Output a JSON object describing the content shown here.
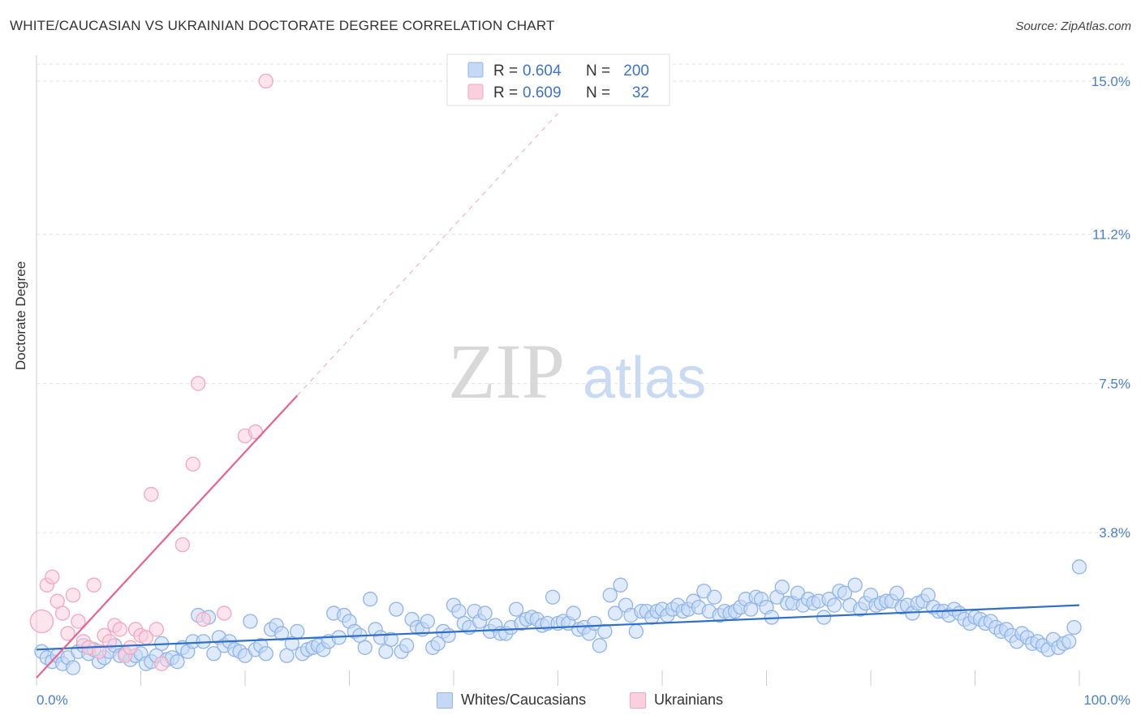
{
  "header": {
    "title": "WHITE/CAUCASIAN VS UKRAINIAN DOCTORATE DEGREE CORRELATION CHART",
    "source": "Source: ZipAtlas.com"
  },
  "watermark": {
    "zip": "ZIP",
    "atlas": "atlas"
  },
  "legend_top": {
    "rows": [
      {
        "r_label": "R =",
        "r_value": "0.604",
        "n_label": "N =",
        "n_value": "200",
        "color": "#8fb4ea"
      },
      {
        "r_label": "R =",
        "r_value": "0.609",
        "n_label": "N =",
        "n_value": "32",
        "color": "#f4a6bf"
      }
    ]
  },
  "legend_bottom": {
    "items": [
      {
        "label": "Whites/Caucasians",
        "fill": "#c5d9f5",
        "stroke": "#8fb4ea"
      },
      {
        "label": "Ukrainians",
        "fill": "#f9d0dd",
        "stroke": "#f4a6bf"
      }
    ]
  },
  "chart_data": {
    "type": "scatter",
    "title": "WHITE/CAUCASIAN VS UKRAINIAN DOCTORATE DEGREE CORRELATION CHART",
    "xlabel": "",
    "ylabel": "Doctorate Degree",
    "xlim": [
      0,
      100
    ],
    "ylim": [
      0,
      15.4
    ],
    "x_tick_labels": [
      "0.0%",
      "100.0%"
    ],
    "y_ticks": [
      3.8,
      7.5,
      11.2,
      15.0
    ],
    "y_tick_labels": [
      "3.8%",
      "7.5%",
      "11.2%",
      "15.0%"
    ],
    "grid": true,
    "legend_position": "top-center",
    "series": [
      {
        "name": "Whites/Caucasians",
        "color": "#8fb4ea",
        "line_color": "#2e6fcc",
        "trend": {
          "x": [
            0,
            100
          ],
          "y": [
            0.9,
            2.0
          ]
        },
        "points": [
          [
            0.5,
            0.85
          ],
          [
            1,
            0.7
          ],
          [
            1.5,
            0.6
          ],
          [
            2,
            0.75
          ],
          [
            2.5,
            0.55
          ],
          [
            3,
            0.7
          ],
          [
            3.5,
            0.45
          ],
          [
            4,
            0.85
          ],
          [
            4.5,
            1.0
          ],
          [
            5,
            0.8
          ],
          [
            5.5,
            0.9
          ],
          [
            6,
            0.6
          ],
          [
            6.5,
            0.7
          ],
          [
            7,
            0.85
          ],
          [
            7.5,
            1.0
          ],
          [
            8,
            0.75
          ],
          [
            8.5,
            0.8
          ],
          [
            9,
            0.65
          ],
          [
            9.5,
            0.75
          ],
          [
            10,
            0.8
          ],
          [
            10.5,
            0.55
          ],
          [
            11,
            0.6
          ],
          [
            11.5,
            0.75
          ],
          [
            12,
            1.05
          ],
          [
            12.5,
            0.65
          ],
          [
            13,
            0.7
          ],
          [
            13.5,
            0.6
          ],
          [
            14,
            0.95
          ],
          [
            14.5,
            0.85
          ],
          [
            15,
            1.1
          ],
          [
            15.5,
            1.75
          ],
          [
            16,
            1.1
          ],
          [
            16.5,
            1.7
          ],
          [
            17,
            0.8
          ],
          [
            17.5,
            1.2
          ],
          [
            18,
            1.0
          ],
          [
            18.5,
            1.1
          ],
          [
            19,
            0.9
          ],
          [
            19.5,
            0.85
          ],
          [
            20,
            0.75
          ],
          [
            20.5,
            1.6
          ],
          [
            21,
            0.9
          ],
          [
            21.5,
            1.0
          ],
          [
            22,
            0.8
          ],
          [
            22.5,
            1.4
          ],
          [
            23,
            1.5
          ],
          [
            23.5,
            1.3
          ],
          [
            24,
            0.75
          ],
          [
            24.5,
            1.05
          ],
          [
            25,
            1.35
          ],
          [
            25.5,
            0.8
          ],
          [
            26,
            0.9
          ],
          [
            26.5,
            0.95
          ],
          [
            27,
            1.0
          ],
          [
            27.5,
            0.9
          ],
          [
            28,
            1.1
          ],
          [
            28.5,
            1.8
          ],
          [
            29,
            1.2
          ],
          [
            29.5,
            1.75
          ],
          [
            30,
            1.6
          ],
          [
            30.5,
            1.35
          ],
          [
            31,
            1.25
          ],
          [
            31.5,
            0.95
          ],
          [
            32,
            2.15
          ],
          [
            32.5,
            1.4
          ],
          [
            33,
            1.2
          ],
          [
            33.5,
            0.85
          ],
          [
            34,
            1.15
          ],
          [
            34.5,
            1.9
          ],
          [
            35,
            0.85
          ],
          [
            35.5,
            1.0
          ],
          [
            36,
            1.65
          ],
          [
            36.5,
            1.45
          ],
          [
            37,
            1.4
          ],
          [
            37.5,
            1.6
          ],
          [
            38,
            0.95
          ],
          [
            38.5,
            1.05
          ],
          [
            39,
            1.35
          ],
          [
            39.5,
            1.25
          ],
          [
            40,
            2.0
          ],
          [
            40.5,
            1.85
          ],
          [
            41,
            1.55
          ],
          [
            41.5,
            1.45
          ],
          [
            42,
            1.85
          ],
          [
            42.5,
            1.6
          ],
          [
            43,
            1.8
          ],
          [
            43.5,
            1.35
          ],
          [
            44,
            1.5
          ],
          [
            44.5,
            1.3
          ],
          [
            45,
            1.3
          ],
          [
            45.5,
            1.45
          ],
          [
            46,
            1.9
          ],
          [
            46.5,
            1.55
          ],
          [
            47,
            1.65
          ],
          [
            47.5,
            1.7
          ],
          [
            48,
            1.65
          ],
          [
            48.5,
            1.5
          ],
          [
            49,
            1.55
          ],
          [
            49.5,
            2.2
          ],
          [
            50,
            1.55
          ],
          [
            50.5,
            1.6
          ],
          [
            51,
            1.55
          ],
          [
            51.5,
            1.8
          ],
          [
            52,
            1.4
          ],
          [
            52.5,
            1.45
          ],
          [
            53,
            1.3
          ],
          [
            53.5,
            1.55
          ],
          [
            54,
            1.0
          ],
          [
            54.5,
            1.35
          ],
          [
            55,
            2.25
          ],
          [
            55.5,
            1.8
          ],
          [
            56,
            2.5
          ],
          [
            56.5,
            2.0
          ],
          [
            57,
            1.75
          ],
          [
            57.5,
            1.35
          ],
          [
            58,
            1.85
          ],
          [
            58.5,
            1.85
          ],
          [
            59,
            1.7
          ],
          [
            59.5,
            1.85
          ],
          [
            60,
            1.9
          ],
          [
            60.5,
            1.75
          ],
          [
            61,
            1.9
          ],
          [
            61.5,
            2.0
          ],
          [
            62,
            1.85
          ],
          [
            62.5,
            1.9
          ],
          [
            63,
            2.1
          ],
          [
            63.5,
            1.95
          ],
          [
            64,
            2.35
          ],
          [
            64.5,
            1.85
          ],
          [
            65,
            2.2
          ],
          [
            65.5,
            1.75
          ],
          [
            66,
            1.85
          ],
          [
            66.5,
            1.8
          ],
          [
            67,
            1.85
          ],
          [
            67.5,
            1.95
          ],
          [
            68,
            2.15
          ],
          [
            68.5,
            1.9
          ],
          [
            69,
            2.2
          ],
          [
            69.5,
            2.15
          ],
          [
            70,
            1.95
          ],
          [
            70.5,
            1.7
          ],
          [
            71,
            2.2
          ],
          [
            71.5,
            2.45
          ],
          [
            72,
            2.05
          ],
          [
            72.5,
            2.05
          ],
          [
            73,
            2.3
          ],
          [
            73.5,
            2.0
          ],
          [
            74,
            2.15
          ],
          [
            74.5,
            2.05
          ],
          [
            75,
            2.1
          ],
          [
            75.5,
            1.7
          ],
          [
            76,
            2.15
          ],
          [
            76.5,
            2.0
          ],
          [
            77,
            2.35
          ],
          [
            77.5,
            2.3
          ],
          [
            78,
            2.0
          ],
          [
            78.5,
            2.5
          ],
          [
            79,
            1.9
          ],
          [
            79.5,
            2.05
          ],
          [
            80,
            2.25
          ],
          [
            80.5,
            2.0
          ],
          [
            81,
            2.05
          ],
          [
            81.5,
            2.1
          ],
          [
            82,
            2.1
          ],
          [
            82.5,
            2.3
          ],
          [
            83,
            1.95
          ],
          [
            83.5,
            2.0
          ],
          [
            84,
            1.8
          ],
          [
            84.5,
            2.05
          ],
          [
            85,
            2.1
          ],
          [
            85.5,
            2.25
          ],
          [
            86,
            1.95
          ],
          [
            86.5,
            1.85
          ],
          [
            87,
            1.85
          ],
          [
            87.5,
            1.75
          ],
          [
            88,
            1.9
          ],
          [
            88.5,
            1.8
          ],
          [
            89,
            1.65
          ],
          [
            89.5,
            1.55
          ],
          [
            90,
            1.7
          ],
          [
            90.5,
            1.65
          ],
          [
            91,
            1.55
          ],
          [
            91.5,
            1.6
          ],
          [
            92,
            1.45
          ],
          [
            92.5,
            1.35
          ],
          [
            93,
            1.4
          ],
          [
            93.5,
            1.25
          ],
          [
            94,
            1.1
          ],
          [
            94.5,
            1.3
          ],
          [
            95,
            1.2
          ],
          [
            95.5,
            1.05
          ],
          [
            96,
            1.1
          ],
          [
            96.5,
            1.0
          ],
          [
            97,
            0.9
          ],
          [
            97.5,
            1.15
          ],
          [
            98,
            0.95
          ],
          [
            98.5,
            1.05
          ],
          [
            99,
            1.1
          ],
          [
            99.5,
            1.45
          ],
          [
            100,
            2.95
          ]
        ]
      },
      {
        "name": "Ukrainians",
        "color": "#f4a6bf",
        "line_color": "#e8628f",
        "trend": {
          "x": [
            0,
            25
          ],
          "y": [
            0.2,
            7.2
          ]
        },
        "trend_extension": {
          "x": [
            25,
            50
          ],
          "y": [
            7.2,
            14.2
          ]
        },
        "points": [
          [
            0.5,
            1.6
          ],
          [
            1,
            2.5
          ],
          [
            1.5,
            2.7
          ],
          [
            2,
            2.1
          ],
          [
            2.5,
            1.8
          ],
          [
            3,
            1.3
          ],
          [
            3.5,
            2.25
          ],
          [
            4,
            1.6
          ],
          [
            4.5,
            1.1
          ],
          [
            5,
            0.95
          ],
          [
            5.5,
            2.5
          ],
          [
            6,
            0.85
          ],
          [
            6.5,
            1.25
          ],
          [
            7,
            1.1
          ],
          [
            7.5,
            1.5
          ],
          [
            8,
            1.4
          ],
          [
            8.5,
            0.75
          ],
          [
            9,
            0.95
          ],
          [
            9.5,
            1.4
          ],
          [
            10,
            1.25
          ],
          [
            10.5,
            1.2
          ],
          [
            11,
            4.75
          ],
          [
            11.5,
            1.4
          ],
          [
            12,
            0.55
          ],
          [
            14,
            3.5
          ],
          [
            15,
            5.5
          ],
          [
            15.5,
            7.5
          ],
          [
            16,
            1.65
          ],
          [
            18,
            1.8
          ],
          [
            20,
            6.2
          ],
          [
            21,
            6.3
          ],
          [
            22,
            15.0
          ]
        ]
      }
    ]
  }
}
